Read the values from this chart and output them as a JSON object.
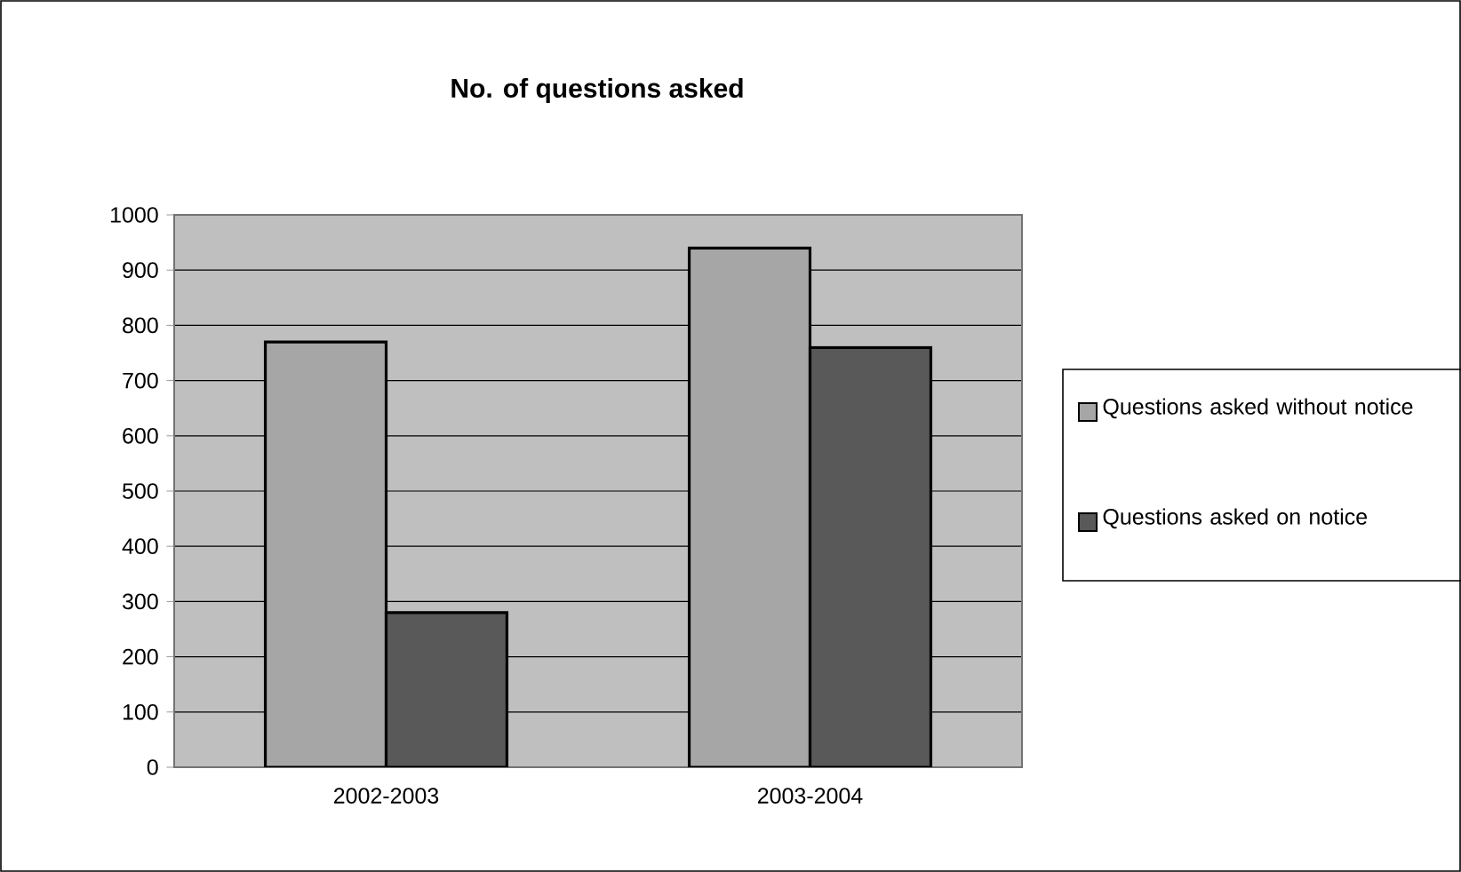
{
  "chart_data": {
    "type": "bar",
    "title": "No. of questions asked",
    "categories": [
      "2002-2003",
      "2003-2004"
    ],
    "series": [
      {
        "name": "Questions asked without notice",
        "color": "#a6a6a6",
        "values": [
          770,
          940
        ]
      },
      {
        "name": "Questions asked on notice",
        "color": "#595959",
        "values": [
          280,
          760
        ]
      }
    ],
    "ylim": [
      0,
      1000
    ],
    "yticks": [
      0,
      100,
      200,
      300,
      400,
      500,
      600,
      700,
      800,
      900,
      1000
    ],
    "grid": "y",
    "legend": "right"
  }
}
